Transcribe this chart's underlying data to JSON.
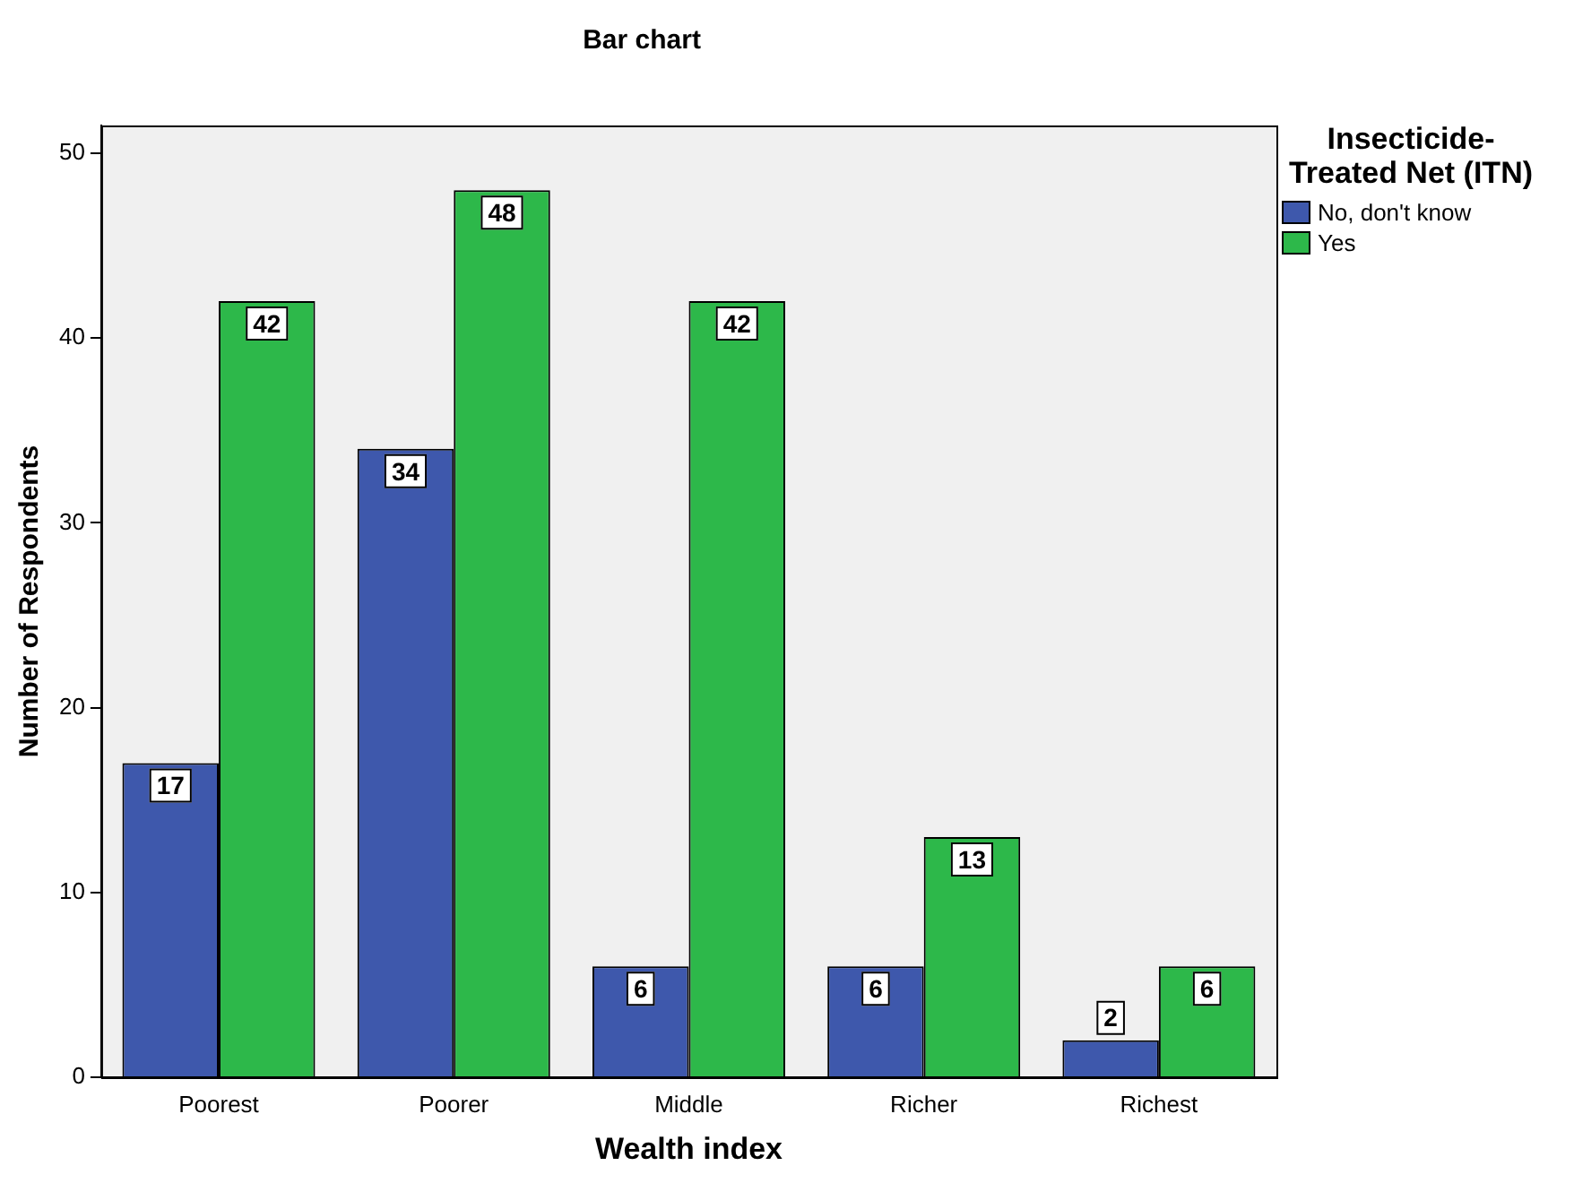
{
  "chart_data": {
    "type": "bar",
    "title": "Bar chart",
    "xlabel": "Wealth index",
    "ylabel": "Number of Respondents",
    "legend_title": "Insecticide-Treated Net (ITN)",
    "categories": [
      "Poorest",
      "Poorer",
      "Middle",
      "Richer",
      "Richest"
    ],
    "series": [
      {
        "name": "No, don't know",
        "color": "#3e58ac",
        "values": [
          17,
          34,
          6,
          6,
          2
        ]
      },
      {
        "name": "Yes",
        "color": "#2db84a",
        "values": [
          42,
          48,
          42,
          13,
          6
        ]
      }
    ],
    "ylim": [
      0,
      51.5
    ],
    "yticks": [
      0,
      10,
      20,
      30,
      40,
      50
    ],
    "grid": false,
    "legend": "top right",
    "data_labels": true
  }
}
